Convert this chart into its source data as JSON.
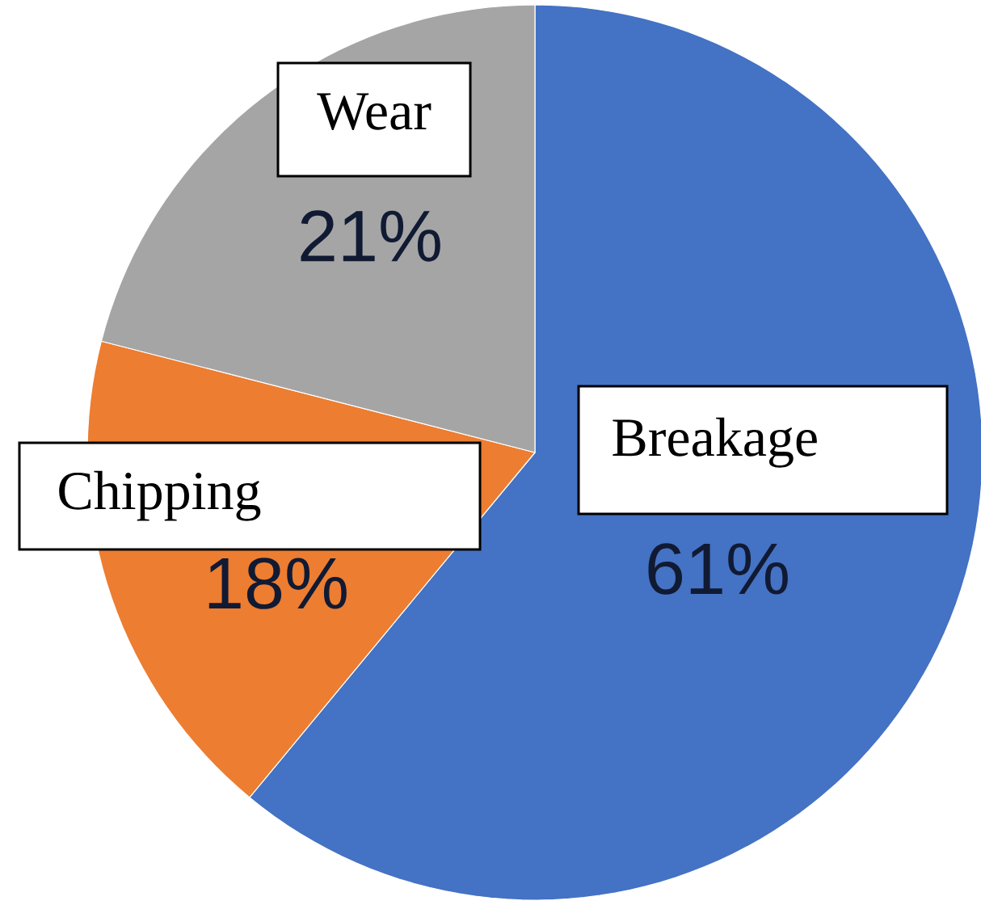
{
  "chart_data": {
    "type": "pie",
    "categories": [
      "Breakage",
      "Chipping",
      "Wear"
    ],
    "values": [
      61,
      18,
      21
    ],
    "colors": [
      "#4472c4",
      "#ed7d31",
      "#a5a5a5"
    ],
    "value_labels": [
      "61%",
      "18%",
      "21%"
    ]
  }
}
